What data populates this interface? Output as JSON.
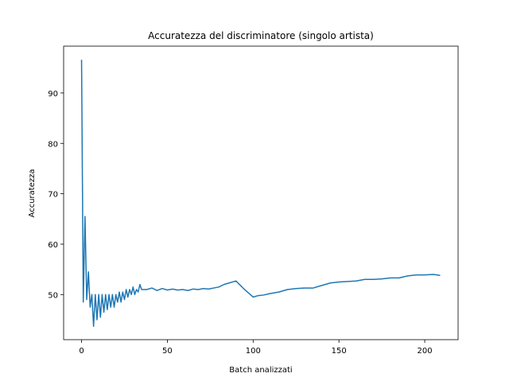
{
  "chart_data": {
    "type": "line",
    "title": "Accuratezza del discriminatore (singolo artista)",
    "x_label": "Batch analizzati",
    "y_label": "Accuratezza",
    "x": [
      0,
      1,
      2,
      3,
      4,
      5,
      6,
      7,
      8,
      9,
      10,
      11,
      12,
      13,
      14,
      15,
      16,
      17,
      18,
      19,
      20,
      21,
      22,
      23,
      24,
      25,
      26,
      27,
      28,
      29,
      30,
      31,
      32,
      33,
      34,
      35,
      38,
      41,
      44,
      47,
      50,
      53,
      56,
      59,
      62,
      65,
      68,
      71,
      74,
      77,
      80,
      83,
      86,
      90,
      95,
      100,
      103,
      106,
      110,
      115,
      120,
      125,
      130,
      135,
      140,
      145,
      150,
      155,
      160,
      165,
      170,
      175,
      180,
      185,
      190,
      195,
      200,
      205,
      209
    ],
    "series": [
      {
        "color": "#1f77b4",
        "values": [
          96.6,
          48.5,
          65.5,
          49,
          54.5,
          47.5,
          50,
          43.7,
          50,
          45,
          50,
          45.5,
          50,
          46.5,
          50,
          47,
          50,
          47.5,
          50,
          47.5,
          50,
          48.5,
          50.5,
          48.5,
          50.5,
          49,
          51,
          49.5,
          51,
          50,
          51.5,
          50,
          51,
          50.5,
          52,
          51,
          51,
          51.3,
          50.8,
          51.2,
          50.9,
          51.1,
          50.9,
          51,
          50.8,
          51.1,
          51,
          51.2,
          51.1,
          51.3,
          51.5,
          52,
          52.3,
          52.7,
          51,
          49.5,
          49.8,
          49.9,
          50.2,
          50.5,
          51,
          51.2,
          51.3,
          51.3,
          51.8,
          52.3,
          52.5,
          52.6,
          52.7,
          53,
          53,
          53.1,
          53.3,
          53.3,
          53.7,
          53.9,
          53.9,
          54,
          53.8
        ]
      }
    ],
    "xlim": [
      -10.45,
      219.45
    ],
    "xticks": [
      0,
      50,
      100,
      150,
      200
    ],
    "ylim": [
      41.05,
      99.3
    ],
    "yticks": [
      50,
      60,
      70,
      80,
      90
    ]
  }
}
